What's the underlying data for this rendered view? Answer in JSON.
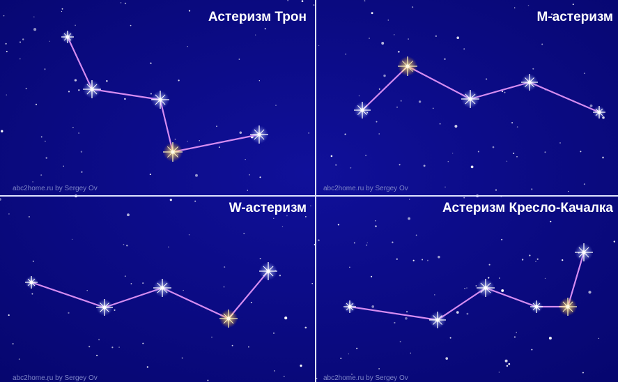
{
  "panels": [
    {
      "title": "Астеризм Трон",
      "credit": "abc2home.ru by Sergey Ov"
    },
    {
      "title": "М-астеризм",
      "credit": "abc2home.ru by Sergey Ov"
    },
    {
      "title": "W-астеризм",
      "credit": "abc2home.ru by Sergey Ov"
    },
    {
      "title": "Астеризм Кресло-Качалка",
      "credit": "abc2home.ru by Sergey Ov"
    }
  ]
}
